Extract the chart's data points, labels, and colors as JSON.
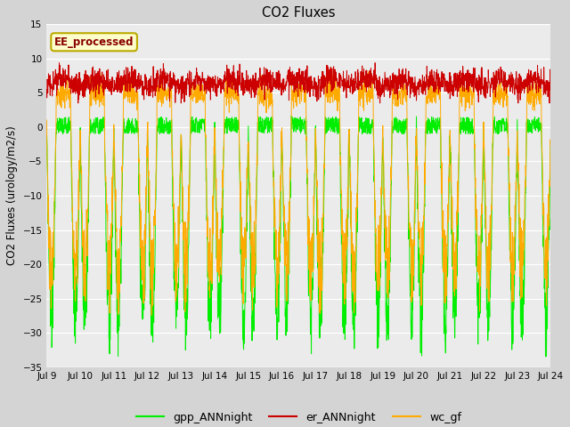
{
  "title": "CO2 Fluxes",
  "ylabel": "CO2 Fluxes (urology/m2/s)",
  "ylim": [
    -35,
    15
  ],
  "yticks": [
    -35,
    -30,
    -25,
    -20,
    -15,
    -10,
    -5,
    0,
    5,
    10,
    15
  ],
  "annotation": "EE_processed",
  "annotation_bg": "#ffffcc",
  "annotation_edge": "#bbaa00",
  "annotation_text_color": "#880000",
  "colors": {
    "gpp": "#00ee00",
    "er": "#cc0000",
    "wc": "#ffaa00"
  },
  "legend_labels": [
    "gpp_ANNnight",
    "er_ANNnight",
    "wc_gf"
  ],
  "n_days": 15,
  "points_per_day": 144,
  "start_day": 9,
  "plot_bg": "#ebebeb",
  "fig_bg": "#d4d4d4"
}
